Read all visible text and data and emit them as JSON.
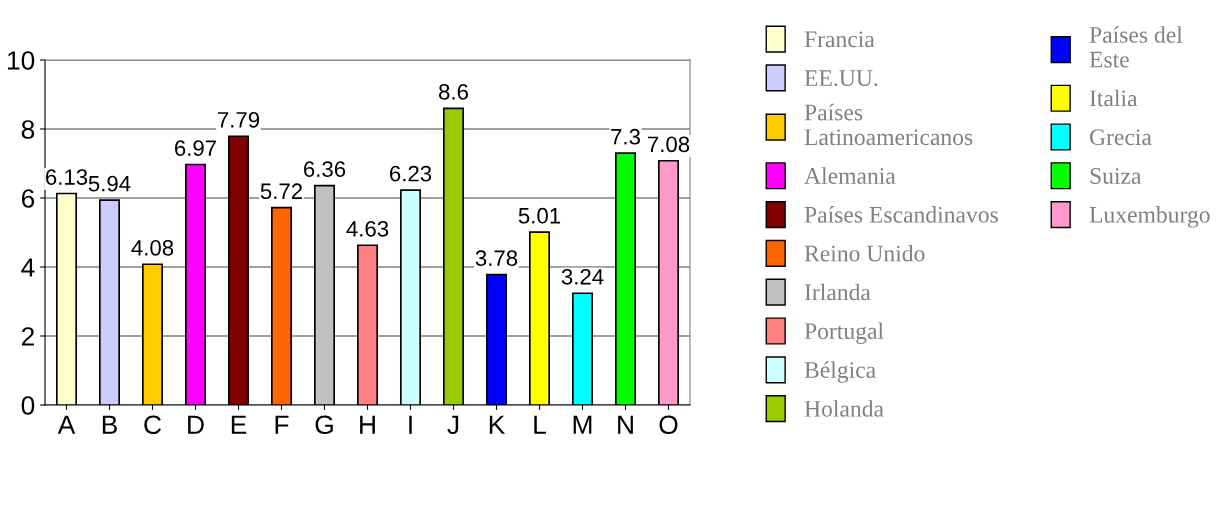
{
  "chart_data": {
    "type": "bar",
    "categories": [
      "A",
      "B",
      "C",
      "D",
      "E",
      "F",
      "G",
      "H",
      "I",
      "J",
      "K",
      "L",
      "M",
      "N",
      "O"
    ],
    "series": [
      {
        "name": "Francia",
        "color": "#ffffcc",
        "values": [
          6.13,
          null,
          null,
          null,
          null,
          null,
          null,
          null,
          null,
          null,
          null,
          null,
          null,
          null,
          null
        ]
      },
      {
        "name": "EE.UU.",
        "color": "#ccccff",
        "values": [
          null,
          5.94,
          null,
          null,
          null,
          null,
          null,
          null,
          null,
          null,
          null,
          null,
          null,
          null,
          null
        ]
      },
      {
        "name": "Países\nLatinoamericanos",
        "color": "#ffcc00",
        "values": [
          null,
          null,
          4.08,
          null,
          null,
          null,
          null,
          null,
          null,
          null,
          null,
          null,
          null,
          null,
          null
        ]
      },
      {
        "name": "Alemania",
        "color": "#ff00ff",
        "values": [
          null,
          null,
          null,
          6.97,
          null,
          null,
          null,
          null,
          null,
          null,
          null,
          null,
          null,
          null,
          null
        ]
      },
      {
        "name": "Países Escandinavos",
        "color": "#800000",
        "values": [
          null,
          null,
          null,
          null,
          7.79,
          null,
          null,
          null,
          null,
          null,
          null,
          null,
          null,
          null,
          null
        ]
      },
      {
        "name": "Reino Unido",
        "color": "#ff6600",
        "values": [
          null,
          null,
          null,
          null,
          null,
          5.72,
          null,
          null,
          null,
          null,
          null,
          null,
          null,
          null,
          null
        ]
      },
      {
        "name": "Irlanda",
        "color": "#c0c0c0",
        "values": [
          null,
          null,
          null,
          null,
          null,
          null,
          6.36,
          null,
          null,
          null,
          null,
          null,
          null,
          null,
          null
        ]
      },
      {
        "name": "Portugal",
        "color": "#ff8080",
        "values": [
          null,
          null,
          null,
          null,
          null,
          null,
          null,
          4.63,
          null,
          null,
          null,
          null,
          null,
          null,
          null
        ]
      },
      {
        "name": "Bélgica",
        "color": "#ccffff",
        "values": [
          null,
          null,
          null,
          null,
          null,
          null,
          null,
          null,
          6.23,
          null,
          null,
          null,
          null,
          null,
          null
        ]
      },
      {
        "name": "Holanda",
        "color": "#99cc00",
        "values": [
          null,
          null,
          null,
          null,
          null,
          null,
          null,
          null,
          null,
          8.6,
          null,
          null,
          null,
          null,
          null
        ]
      },
      {
        "name": "Países del\nEste",
        "color": "#0000ff",
        "values": [
          null,
          null,
          null,
          null,
          null,
          null,
          null,
          null,
          null,
          null,
          3.78,
          null,
          null,
          null,
          null
        ]
      },
      {
        "name": "Italia",
        "color": "#ffff00",
        "values": [
          null,
          null,
          null,
          null,
          null,
          null,
          null,
          null,
          null,
          null,
          null,
          5.01,
          null,
          null,
          null
        ]
      },
      {
        "name": "Grecia",
        "color": "#00ffff",
        "values": [
          null,
          null,
          null,
          null,
          null,
          null,
          null,
          null,
          null,
          null,
          null,
          null,
          3.24,
          null,
          null
        ]
      },
      {
        "name": "Suiza",
        "color": "#00ff00",
        "values": [
          null,
          null,
          null,
          null,
          null,
          null,
          null,
          null,
          null,
          null,
          null,
          null,
          null,
          7.3,
          null
        ]
      },
      {
        "name": "Luxemburgo",
        "color": "#ff99cc",
        "values": [
          null,
          null,
          null,
          null,
          null,
          null,
          null,
          null,
          null,
          null,
          null,
          null,
          null,
          null,
          7.08
        ]
      }
    ],
    "ylim": [
      0,
      10
    ],
    "yticks": [
      0,
      2,
      4,
      6,
      8,
      10
    ],
    "grid": "y",
    "legend": "right",
    "data_labels": true
  }
}
